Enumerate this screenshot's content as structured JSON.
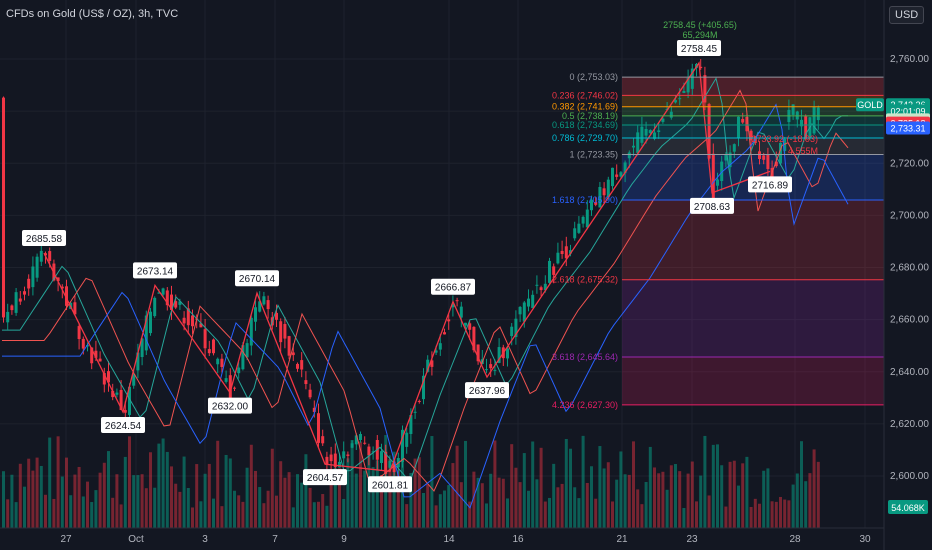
{
  "header": {
    "title": "CFDs on Gold (US$ / OZ), 3h, TVC",
    "currency": "USD"
  },
  "chart_data": {
    "type": "candlestick",
    "symbol": "GOLD",
    "y_axis_ticks": [
      2600,
      2620,
      2640,
      2660,
      2680,
      2700,
      2720,
      2740,
      2760
    ],
    "y_axis_tick_labels": [
      "2,600.00",
      "2,620.00",
      "2,640.00",
      "2,660.00",
      "2,680.00",
      "2,700.00",
      "2,720.00",
      "2,740.00",
      "2,760.00"
    ],
    "x_axis_labels": [
      "27",
      "Oct",
      "3",
      "7",
      "9",
      "14",
      "16",
      "21",
      "23",
      "28",
      "30"
    ],
    "swing_points": [
      {
        "label": "2685.58",
        "x": 44,
        "price": 2685.58,
        "type": "high"
      },
      {
        "label": "2624.54",
        "x": 123,
        "price": 2624.54,
        "type": "low"
      },
      {
        "label": "2673.14",
        "x": 155,
        "price": 2673.14,
        "type": "high"
      },
      {
        "label": "2632.00",
        "x": 230,
        "price": 2632.0,
        "type": "low"
      },
      {
        "label": "2670.14",
        "x": 257,
        "price": 2670.14,
        "type": "high"
      },
      {
        "label": "2604.57",
        "x": 325,
        "price": 2604.57,
        "type": "low"
      },
      {
        "label": "2601.81",
        "x": 390,
        "price": 2601.81,
        "type": "low"
      },
      {
        "label": "2666.87",
        "x": 453,
        "price": 2666.87,
        "type": "high"
      },
      {
        "label": "2637.96",
        "x": 487,
        "price": 2637.96,
        "type": "low"
      },
      {
        "label": "2758.45",
        "x": 699,
        "price": 2758.45,
        "type": "high"
      },
      {
        "label": "2708.63",
        "x": 712,
        "price": 2708.63,
        "type": "low"
      },
      {
        "label": "2716.89",
        "x": 770,
        "price": 2716.89,
        "type": "low"
      }
    ],
    "fib_levels": [
      {
        "label": "0 (2,753.03)",
        "price": 2753.03,
        "color": "#9598a1"
      },
      {
        "label": "0.236 (2,746.02)",
        "price": 2746.02,
        "color": "#f23645"
      },
      {
        "label": "0.382 (2,741.69)",
        "price": 2741.69,
        "color": "#ff9800"
      },
      {
        "label": "0.5 (2,738.19)",
        "price": 2738.19,
        "color": "#4caf50"
      },
      {
        "label": "0.618 (2,734.69)",
        "price": 2734.69,
        "color": "#089981"
      },
      {
        "label": "0.786 (2,729.70)",
        "price": 2729.7,
        "color": "#00bcd4"
      },
      {
        "label": "1 (2,723.35)",
        "price": 2723.35,
        "color": "#9598a1"
      },
      {
        "label": "1.618 (2,705.90)",
        "price": 2705.9,
        "color": "#2962ff"
      },
      {
        "label": "2.618 (2,675.32)",
        "price": 2675.32,
        "color": "#f23645"
      },
      {
        "label": "3.618 (2,645.64)",
        "price": 2645.64,
        "color": "#9c27b0"
      },
      {
        "label": "4.236 (2,627.30)",
        "price": 2627.3,
        "color": "#e91e63"
      }
    ],
    "measure_top": "2758.45 (+405.65)",
    "measure_sub": "65,294M",
    "measure_lower": "2733.92 (-18.93)",
    "measure_lower_sub": "4,555M",
    "price_labels": [
      {
        "text": "2,742.26",
        "price": 2742.26,
        "bg": "#089981",
        "fg": "#ffffff"
      },
      {
        "text": "02:01:09",
        "price": 2739.9,
        "bg": "#089981",
        "fg": "#ffffff"
      },
      {
        "text": "2,736.47",
        "price": 2736.47,
        "bg": "#c8e6c9",
        "fg": "#131722"
      },
      {
        "text": "2,735.18",
        "price": 2735.18,
        "bg": "#f23645",
        "fg": "#ffffff"
      },
      {
        "text": "2,733.31",
        "price": 2733.31,
        "bg": "#2962ff",
        "fg": "#ffffff"
      }
    ],
    "symbol_tag": "GOLD",
    "volume_label": "54.068K"
  }
}
